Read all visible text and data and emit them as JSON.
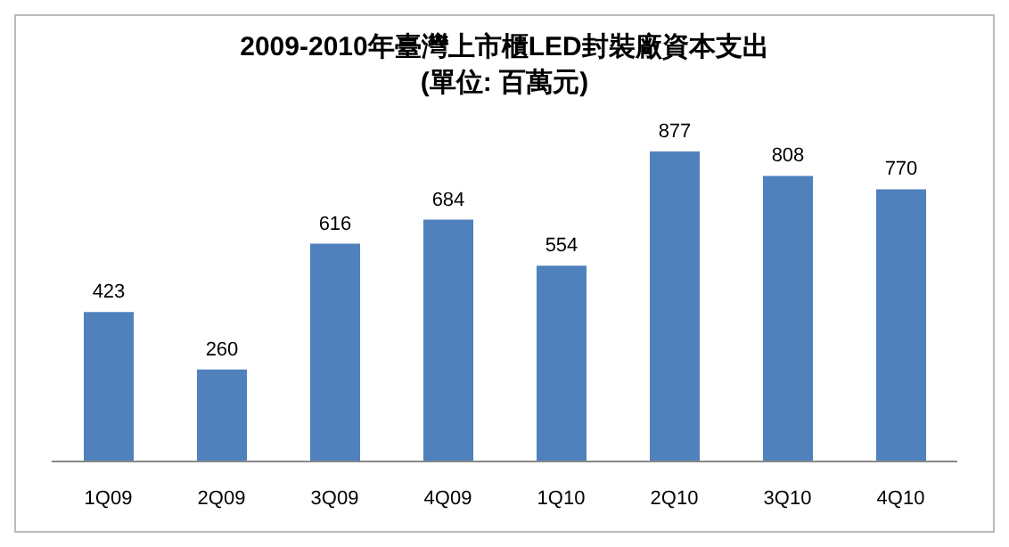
{
  "chart_data": {
    "type": "bar",
    "title": "2009-2010年臺灣上市櫃LED封裝廠資本支出",
    "subtitle": "(單位: 百萬元)",
    "categories": [
      "1Q09",
      "2Q09",
      "3Q09",
      "4Q09",
      "1Q10",
      "2Q10",
      "3Q10",
      "4Q10"
    ],
    "values": [
      423,
      260,
      616,
      684,
      554,
      877,
      808,
      770
    ],
    "color": "#4f81bd",
    "data_labels": true
  }
}
